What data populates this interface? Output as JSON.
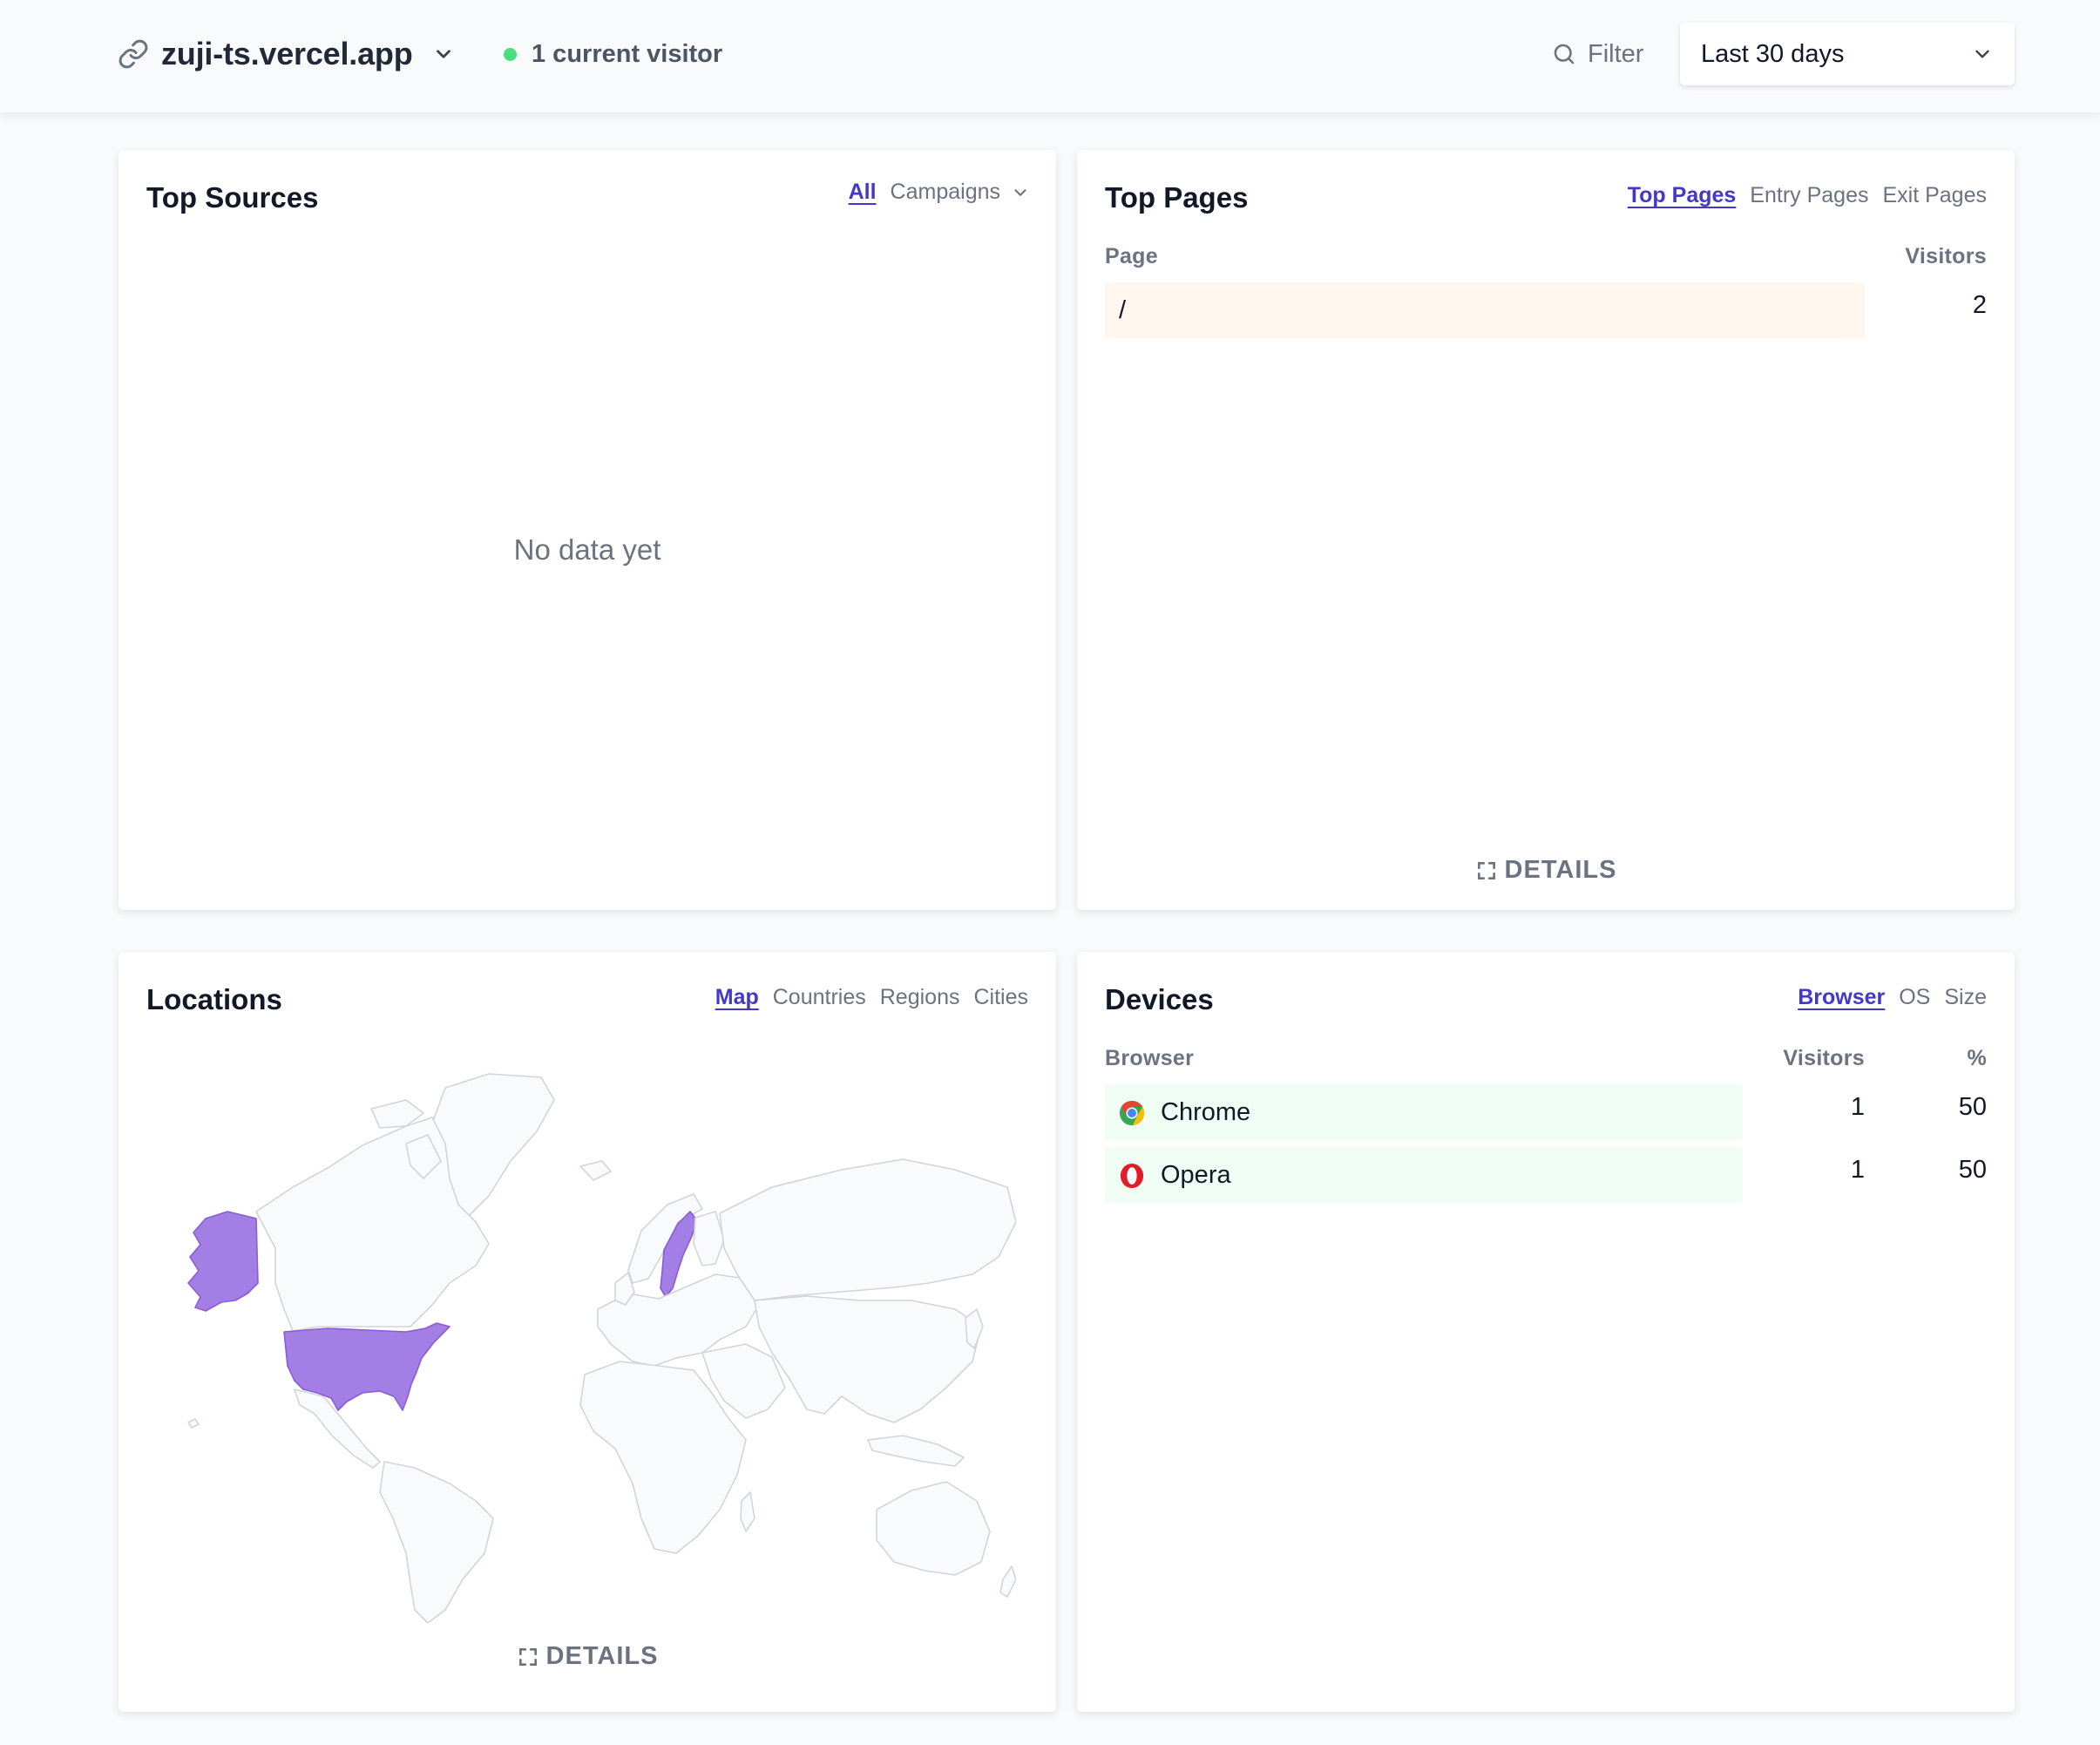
{
  "header": {
    "site_domain": "zuji-ts.vercel.app",
    "current_visitors": "1 current visitor",
    "filter_label": "Filter",
    "period_label": "Last 30 days",
    "live_dot_color": "#4ade80"
  },
  "top_sources": {
    "title": "Top Sources",
    "tabs": {
      "all": "All",
      "campaigns": "Campaigns"
    },
    "empty_message": "No data yet"
  },
  "top_pages": {
    "title": "Top Pages",
    "tabs": {
      "top_pages": "Top Pages",
      "entry_pages": "Entry Pages",
      "exit_pages": "Exit Pages"
    },
    "columns": {
      "page": "Page",
      "visitors": "Visitors"
    },
    "rows": [
      {
        "page": "/",
        "visitors": "2"
      }
    ],
    "details_label": "DETAILS",
    "bar_color": "#fff7ed"
  },
  "locations": {
    "title": "Locations",
    "tabs": {
      "map": "Map",
      "countries": "Countries",
      "regions": "Regions",
      "cities": "Cities"
    },
    "highlighted_countries": [
      "United States",
      "Sweden"
    ],
    "highlight_color": "#a37ee4",
    "details_label": "DETAILS"
  },
  "devices": {
    "title": "Devices",
    "tabs": {
      "browser": "Browser",
      "os": "OS",
      "size": "Size"
    },
    "columns": {
      "browser": "Browser",
      "visitors": "Visitors",
      "percent": "%"
    },
    "rows": [
      {
        "name": "Chrome",
        "icon": "chrome-icon",
        "visitors": "1",
        "percent": "50"
      },
      {
        "name": "Opera",
        "icon": "opera-icon",
        "visitors": "1",
        "percent": "50"
      }
    ],
    "bar_color": "#f0fdf4"
  },
  "colors": {
    "accent": "#4338ca",
    "muted_text": "#6b7280",
    "background": "#f8fafc"
  }
}
